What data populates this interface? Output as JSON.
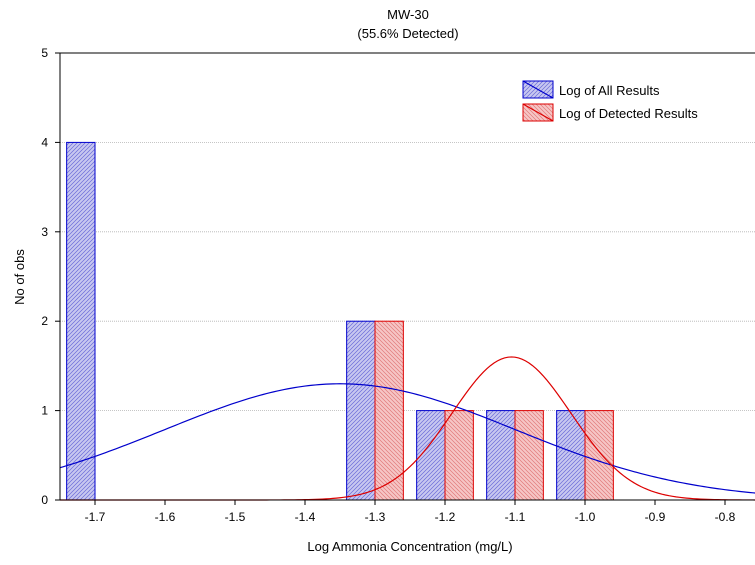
{
  "chart_data": {
    "type": "bar",
    "title": "MW-30",
    "subtitle": "(55.6% Detected)",
    "xlabel": "Log Ammonia Concentration (mg/L)",
    "ylabel": "No of obs",
    "xlim": [
      -1.75,
      -0.75
    ],
    "ylim": [
      0,
      5
    ],
    "x_ticks": [
      -1.7,
      -1.6,
      -1.5,
      -1.4,
      -1.3,
      -1.2,
      -1.1,
      -1.0,
      -0.9,
      -0.8
    ],
    "x_tick_labels": [
      "-1.7",
      "-1.6",
      "-1.5",
      "-1.4",
      "-1.3",
      "-1.2",
      "-1.1",
      "-1.0",
      "-0.9",
      "-0.8"
    ],
    "y_ticks": [
      0,
      1,
      2,
      3,
      4,
      5
    ],
    "y_tick_labels": [
      "0",
      "1",
      "2",
      "3",
      "4",
      "5"
    ],
    "grid": "horizontal",
    "legend_position": "top-right",
    "bin_width": 0.1,
    "series": [
      {
        "name": "Log of All Results",
        "color": "#0000cc",
        "fill": "#c8c8f0",
        "bars": [
          {
            "x": -1.7,
            "value": 4
          },
          {
            "x": -1.3,
            "value": 2
          },
          {
            "x": -1.2,
            "value": 1
          },
          {
            "x": -1.1,
            "value": 1
          },
          {
            "x": -1.0,
            "value": 1
          }
        ],
        "normal_fit": {
          "mean": -1.35,
          "sd": 0.25,
          "peak": 1.3
        }
      },
      {
        "name": "Log of Detected Results",
        "color": "#dd0000",
        "fill": "#f6c6c6",
        "bars": [
          {
            "x": -1.3,
            "value": 2
          },
          {
            "x": -1.2,
            "value": 1
          },
          {
            "x": -1.1,
            "value": 1
          },
          {
            "x": -1.0,
            "value": 1
          }
        ],
        "normal_fit": {
          "mean": -1.105,
          "sd": 0.085,
          "peak": 1.6
        }
      }
    ]
  }
}
